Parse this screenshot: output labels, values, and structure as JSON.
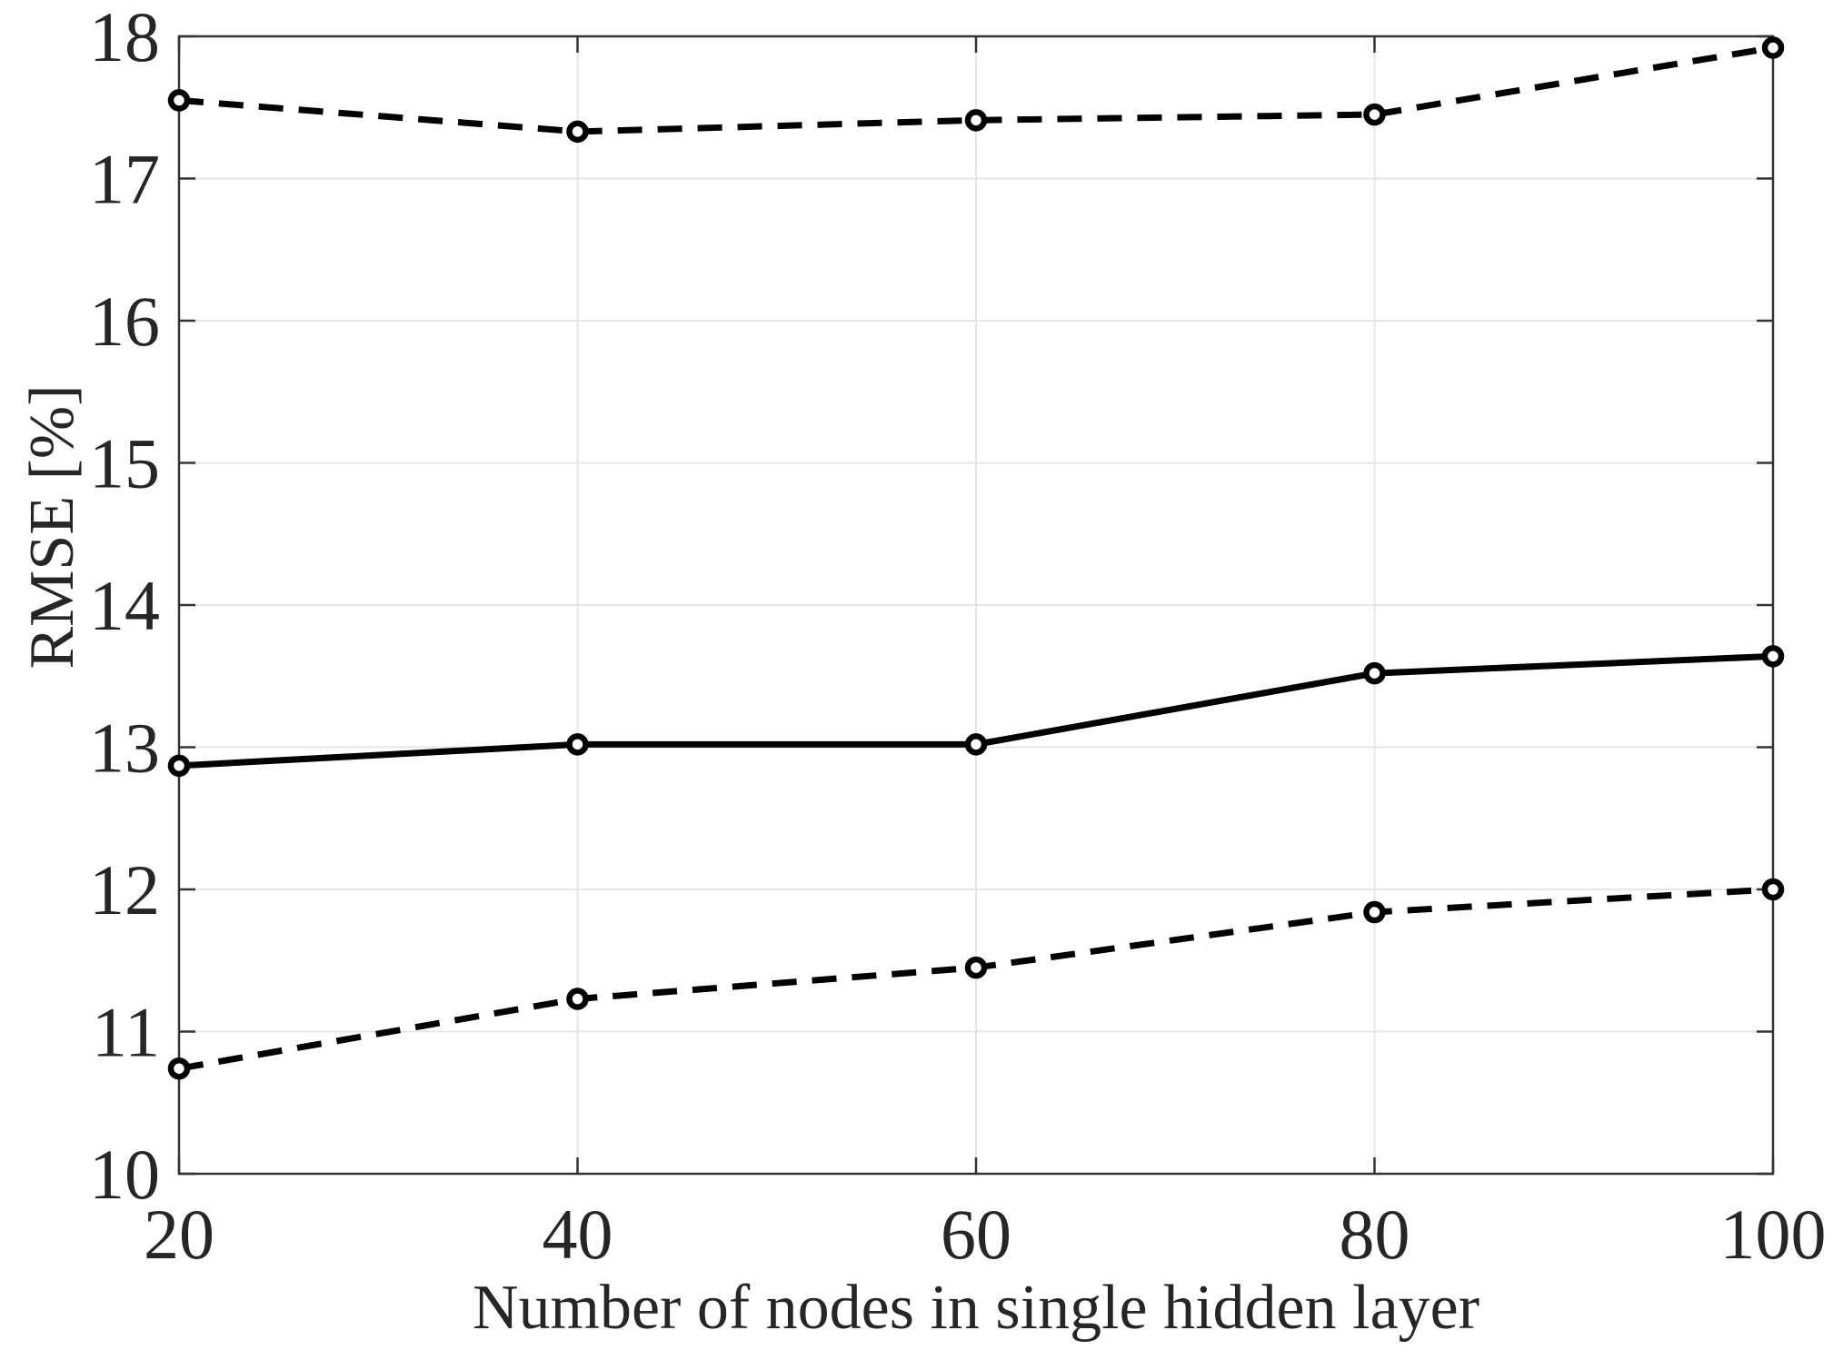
{
  "figure": {
    "background": "#ffffff"
  },
  "chart_data": {
    "type": "line",
    "x": [
      20,
      40,
      60,
      80,
      100
    ],
    "series": [
      {
        "name": "upper-dashed",
        "line_style": "dashed",
        "marker": "open-circle",
        "color": "#000000",
        "values": [
          17.55,
          17.33,
          17.41,
          17.45,
          17.92
        ]
      },
      {
        "name": "middle-solid",
        "line_style": "solid",
        "marker": "open-circle",
        "color": "#000000",
        "values": [
          12.87,
          13.02,
          13.02,
          13.52,
          13.64
        ]
      },
      {
        "name": "lower-dashed",
        "line_style": "dashed",
        "marker": "open-circle",
        "color": "#000000",
        "values": [
          10.74,
          11.23,
          11.45,
          11.84,
          12.0
        ]
      }
    ],
    "title": "",
    "xlabel": "Number of nodes in single hidden layer",
    "ylabel": "RMSE [%]",
    "xlim": [
      20,
      100
    ],
    "ylim": [
      10,
      18
    ],
    "xticks": [
      "20",
      "40",
      "60",
      "80",
      "100"
    ],
    "yticks": [
      "10",
      "11",
      "12",
      "13",
      "14",
      "15",
      "16",
      "17",
      "18"
    ],
    "grid": true,
    "legend_position": "none",
    "grid_color": "#e6e6e6",
    "axis_color": "#333333",
    "tick_label_color": "#262626"
  }
}
